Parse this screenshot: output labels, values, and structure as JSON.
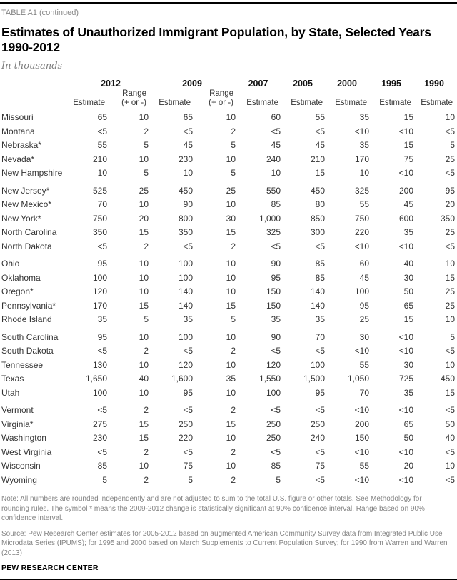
{
  "page": {
    "kicker": "TABLE A1 (continued)",
    "title": "Estimates of Unauthorized Immigrant Population, by State, Selected Years\n1990-2012",
    "subtitle": "In thousands",
    "note": "Note: All numbers are rounded independently and are not adjusted to sum to the total U.S. figure or other totals. See Methodology for rounding rules. The symbol * means the 2009-2012 change is statistically significant at 90% confidence interval. Range based on 90% confidence interval.",
    "source": "Source: Pew Research Center estimates for 2005-2012 based on augmented American Community Survey data from Integrated Public Use Microdata Series (IPUMS); for 1995 and 2000 based on March Supplements to Current Population Survey; for 1990 from Warren and Warren (2013)",
    "footer_brand": "PEW RESEARCH CENTER"
  },
  "colors": {
    "rule": "#000000",
    "text": "#333333",
    "muted": "#838383"
  },
  "table": {
    "estimate_label": "Estimate",
    "range_label": "Range\n(+ or -)",
    "year_groups": [
      {
        "label": "2012",
        "has_range": true
      },
      {
        "label": "2009",
        "has_range": true
      },
      {
        "label": "2007",
        "has_range": false
      },
      {
        "label": "2005",
        "has_range": false
      },
      {
        "label": "2000",
        "has_range": false
      },
      {
        "label": "1995",
        "has_range": false
      },
      {
        "label": "1990",
        "has_range": false
      }
    ],
    "columns": [
      "2012 Estimate",
      "2012 Range (+ or -)",
      "2009 Estimate",
      "2009 Range (+ or -)",
      "2007 Estimate",
      "2005 Estimate",
      "2000 Estimate",
      "1995 Estimate",
      "1990 Estimate"
    ],
    "groups": [
      [
        {
          "state": "Missouri",
          "values": [
            "65",
            "10",
            "65",
            "10",
            "60",
            "55",
            "35",
            "15",
            "10"
          ]
        },
        {
          "state": "Montana",
          "values": [
            "<5",
            "2",
            "<5",
            "2",
            "<5",
            "<5",
            "<10",
            "<10",
            "<5"
          ]
        },
        {
          "state": "Nebraska*",
          "values": [
            "55",
            "5",
            "45",
            "5",
            "45",
            "45",
            "35",
            "15",
            "5"
          ]
        },
        {
          "state": "Nevada*",
          "values": [
            "210",
            "10",
            "230",
            "10",
            "240",
            "210",
            "170",
            "75",
            "25"
          ]
        },
        {
          "state": "New Hampshire",
          "values": [
            "10",
            "5",
            "10",
            "5",
            "10",
            "15",
            "10",
            "<10",
            "<5"
          ]
        }
      ],
      [
        {
          "state": "New Jersey*",
          "values": [
            "525",
            "25",
            "450",
            "25",
            "550",
            "450",
            "325",
            "200",
            "95"
          ]
        },
        {
          "state": "New Mexico*",
          "values": [
            "70",
            "10",
            "90",
            "10",
            "85",
            "80",
            "55",
            "45",
            "20"
          ]
        },
        {
          "state": "New York*",
          "values": [
            "750",
            "20",
            "800",
            "30",
            "1,000",
            "850",
            "750",
            "600",
            "350"
          ]
        },
        {
          "state": "North Carolina",
          "values": [
            "350",
            "15",
            "350",
            "15",
            "325",
            "300",
            "220",
            "35",
            "25"
          ]
        },
        {
          "state": "North Dakota",
          "values": [
            "<5",
            "2",
            "<5",
            "2",
            "<5",
            "<5",
            "<10",
            "<10",
            "<5"
          ]
        }
      ],
      [
        {
          "state": "Ohio",
          "values": [
            "95",
            "10",
            "100",
            "10",
            "90",
            "85",
            "60",
            "40",
            "10"
          ]
        },
        {
          "state": "Oklahoma",
          "values": [
            "100",
            "10",
            "100",
            "10",
            "95",
            "85",
            "45",
            "30",
            "15"
          ]
        },
        {
          "state": "Oregon*",
          "values": [
            "120",
            "10",
            "140",
            "10",
            "150",
            "140",
            "100",
            "50",
            "25"
          ]
        },
        {
          "state": "Pennsylvania*",
          "values": [
            "170",
            "15",
            "140",
            "15",
            "150",
            "140",
            "95",
            "65",
            "25"
          ]
        },
        {
          "state": "Rhode Island",
          "values": [
            "35",
            "5",
            "35",
            "5",
            "35",
            "35",
            "25",
            "15",
            "10"
          ]
        }
      ],
      [
        {
          "state": "South Carolina",
          "values": [
            "95",
            "10",
            "100",
            "10",
            "90",
            "70",
            "30",
            "<10",
            "5"
          ]
        },
        {
          "state": "South Dakota",
          "values": [
            "<5",
            "2",
            "<5",
            "2",
            "<5",
            "<5",
            "<10",
            "<10",
            "<5"
          ]
        },
        {
          "state": "Tennessee",
          "values": [
            "130",
            "10",
            "120",
            "10",
            "120",
            "100",
            "55",
            "30",
            "10"
          ]
        },
        {
          "state": "Texas",
          "values": [
            "1,650",
            "40",
            "1,600",
            "35",
            "1,550",
            "1,500",
            "1,050",
            "725",
            "450"
          ]
        },
        {
          "state": "Utah",
          "values": [
            "100",
            "10",
            "95",
            "10",
            "100",
            "95",
            "70",
            "35",
            "15"
          ]
        }
      ],
      [
        {
          "state": "Vermont",
          "values": [
            "<5",
            "2",
            "<5",
            "2",
            "<5",
            "<5",
            "<10",
            "<10",
            "<5"
          ]
        },
        {
          "state": "Virginia*",
          "values": [
            "275",
            "15",
            "250",
            "15",
            "250",
            "250",
            "200",
            "65",
            "50"
          ]
        },
        {
          "state": "Washington",
          "values": [
            "230",
            "15",
            "220",
            "10",
            "250",
            "240",
            "150",
            "50",
            "40"
          ]
        },
        {
          "state": "West Virginia",
          "values": [
            "<5",
            "2",
            "<5",
            "2",
            "<5",
            "<5",
            "<10",
            "<10",
            "<5"
          ]
        },
        {
          "state": "Wisconsin",
          "values": [
            "85",
            "10",
            "75",
            "10",
            "85",
            "75",
            "55",
            "20",
            "10"
          ]
        },
        {
          "state": "Wyoming",
          "values": [
            "5",
            "2",
            "5",
            "2",
            "5",
            "<5",
            "<10",
            "<10",
            "<5"
          ]
        }
      ]
    ]
  }
}
